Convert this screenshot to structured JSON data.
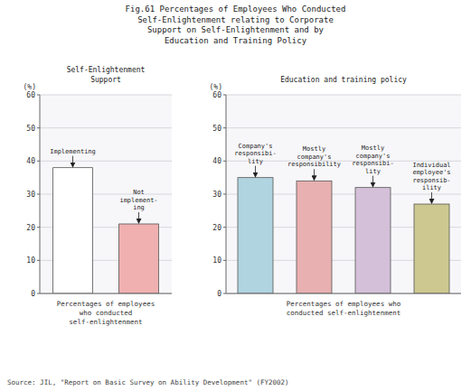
{
  "title": "Fig.61 Percentages of Employees Who Conducted\nSelf-Enlightenment relating to Corporate\nSupport on Self-Enlightenment and by\nEducation and Training Policy",
  "source": "Source: JIL, \"Report on Basic Survey on Ability Development\" (FY2002)",
  "chart_data": [
    {
      "type": "bar",
      "title": "Self-Enlightenment\nSupport",
      "ylabel": "(%)",
      "xlabel": "Percentages of employees\nwho conducted\nself-enlightenment",
      "categories": [
        "Implementing",
        "Not\nimplement-\ning"
      ],
      "values": [
        38,
        21
      ],
      "colors": [
        "white",
        "#f0b0b0"
      ],
      "ylim": [
        0,
        60
      ],
      "yticks": [
        0,
        10,
        20,
        30,
        40,
        50,
        60
      ],
      "grid": true,
      "tick_labels": "y"
    },
    {
      "type": "bar",
      "title": "Education and training policy",
      "ylabel": "(%)",
      "xlabel": "Percentages of employees who\nconducted self-enlightenment",
      "categories": [
        "Company's\nresponsibi-\nlity",
        "Mostly\ncompany's\nresponsibility",
        "Mostly\ncompany's\nresponsibi-\nlity",
        "Individual\nemployee's\nresponsib-\nility"
      ],
      "values": [
        35,
        34,
        32,
        27
      ],
      "colors": [
        "#b0d4e0",
        "#e8b0b0",
        "#d4c0d8",
        "#ccc890"
      ],
      "ylim": [
        0,
        60
      ],
      "yticks": [
        0,
        10,
        20,
        30,
        40,
        50,
        60
      ],
      "grid": true,
      "tick_labels": "y"
    }
  ]
}
